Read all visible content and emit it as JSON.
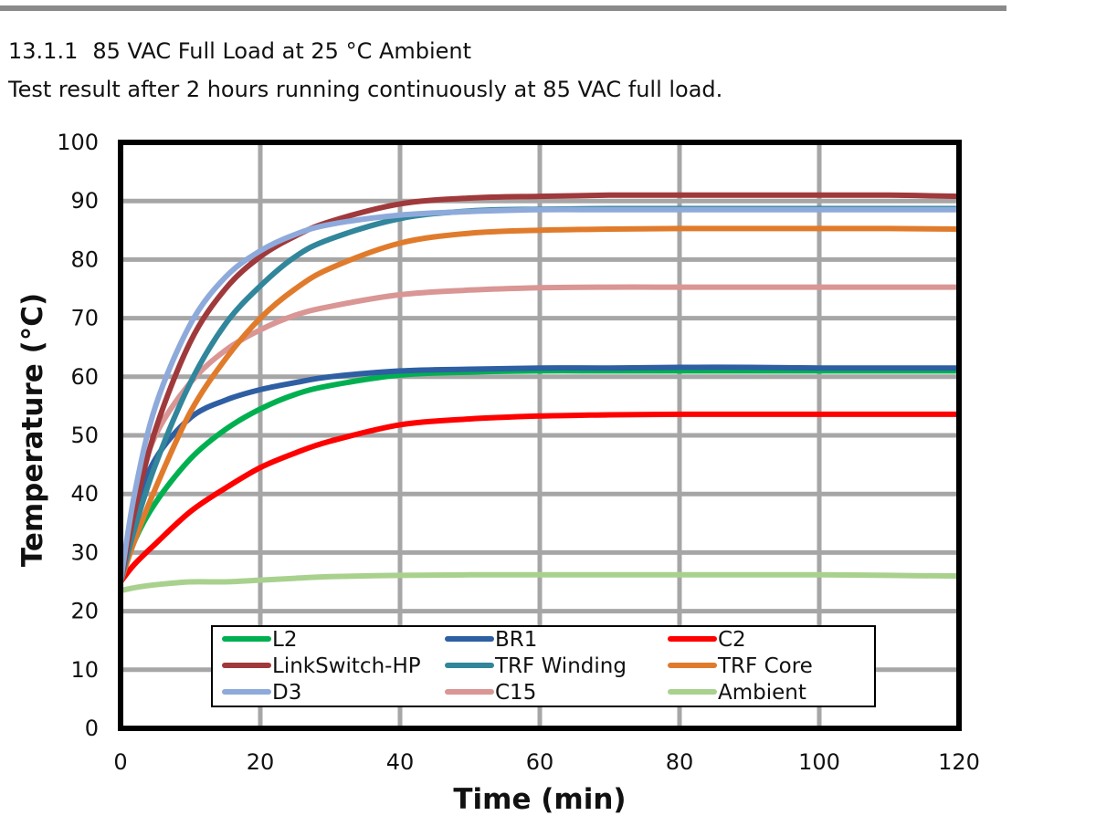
{
  "section": {
    "number": "13.1.1",
    "title": "85 VAC Full Load at 25 °C Ambient",
    "description": "Test result after 2 hours running continuously at 85 VAC full load."
  },
  "chart_data": {
    "type": "line",
    "xlabel": "Time (min)",
    "ylabel": "Temperature (°C)",
    "xlim": [
      0,
      120
    ],
    "ylim": [
      0,
      100
    ],
    "xticks": [
      0,
      20,
      40,
      60,
      80,
      100,
      120
    ],
    "yticks": [
      0,
      10,
      20,
      30,
      40,
      50,
      60,
      70,
      80,
      90,
      100
    ],
    "grid": true,
    "legend_position": "bottom-center",
    "legend_columns": 3,
    "x": [
      0,
      2,
      5,
      10,
      15,
      20,
      25,
      30,
      40,
      50,
      60,
      70,
      80,
      90,
      100,
      110,
      120
    ],
    "series": [
      {
        "name": "L2",
        "color": "#00b050",
        "values": [
          25,
          32,
          38.5,
          46,
          51,
          54.5,
          57,
          58.5,
          60.3,
          60.8,
          61,
          61,
          61,
          61,
          61,
          61,
          61
        ]
      },
      {
        "name": "BR1",
        "color": "#2e5fa3",
        "values": [
          25,
          37,
          46,
          53,
          56,
          57.8,
          59,
          60,
          61,
          61.3,
          61.5,
          61.5,
          61.6,
          61.6,
          61.5,
          61.5,
          61.5
        ]
      },
      {
        "name": "C2",
        "color": "#ff0000",
        "values": [
          25,
          28,
          31.5,
          37,
          41,
          44.5,
          47,
          49,
          51.8,
          52.8,
          53.3,
          53.5,
          53.6,
          53.6,
          53.6,
          53.6,
          53.6
        ]
      },
      {
        "name": "LinkSwitch-HP",
        "color": "#a0393b",
        "values": [
          25,
          37,
          51,
          66,
          75,
          80.5,
          84,
          86.5,
          89.5,
          90.5,
          90.8,
          91,
          91,
          91,
          91,
          91,
          90.8
        ]
      },
      {
        "name": "TRF Winding",
        "color": "#31869b",
        "values": [
          25,
          34,
          45,
          59,
          69,
          75.5,
          80.5,
          83.5,
          87,
          88.3,
          88.6,
          88.7,
          88.7,
          88.7,
          88.7,
          88.7,
          88.7
        ]
      },
      {
        "name": "TRF Core",
        "color": "#e07b2c",
        "values": [
          25,
          32,
          41,
          54,
          63,
          70,
          75,
          78.5,
          82.8,
          84.5,
          85,
          85.2,
          85.3,
          85.3,
          85.3,
          85.3,
          85.2
        ]
      },
      {
        "name": "D3",
        "color": "#8eaadb",
        "values": [
          25,
          40,
          55,
          69,
          77,
          81.5,
          84.3,
          86,
          87.6,
          88.2,
          88.5,
          88.5,
          88.5,
          88.5,
          88.5,
          88.5,
          88.5
        ]
      },
      {
        "name": "C15",
        "color": "#d99694",
        "values": [
          25,
          39,
          50,
          59,
          64.5,
          68,
          70.5,
          72,
          74,
          74.8,
          75.2,
          75.3,
          75.3,
          75.3,
          75.3,
          75.3,
          75.3
        ]
      },
      {
        "name": "Ambient",
        "color": "#a9d18e",
        "values": [
          23.5,
          24,
          24.5,
          25,
          25,
          25.3,
          25.6,
          25.9,
          26.1,
          26.2,
          26.2,
          26.2,
          26.2,
          26.2,
          26.2,
          26.1,
          26
        ]
      }
    ]
  }
}
